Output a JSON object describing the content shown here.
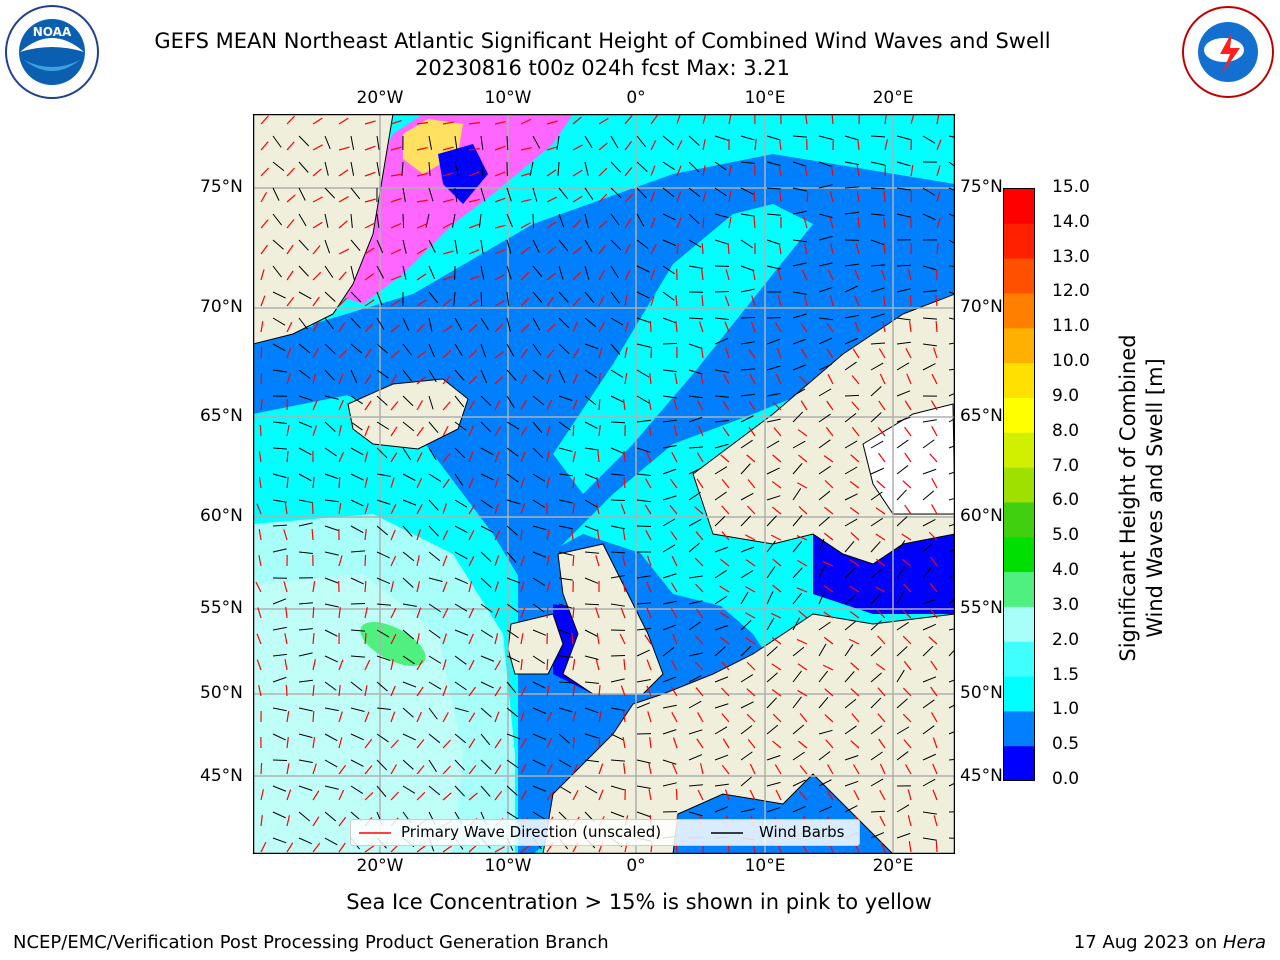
{
  "header": {
    "title_line1": "GEFS MEAN Northeast Atlantic Significant Height of Combined Wind Waves and Swell",
    "title_line2": "20230816 t00z 024h fcst   Max: 3.21"
  },
  "logos": {
    "noaa_text": "NOAA",
    "noaa_ring": "NATIONAL OCEANIC AND ATMOSPHERIC ADMINISTRATION · U.S. DEPARTMENT OF COMMERCE",
    "nws_ring": "NATIONAL WEATHER SERVICE"
  },
  "map": {
    "lon_labels": [
      "20°W",
      "10°W",
      "0°",
      "10°E",
      "20°E"
    ],
    "lat_labels": [
      "75°N",
      "70°N",
      "65°N",
      "60°N",
      "55°N",
      "50°N",
      "45°N"
    ],
    "colors": {
      "land": "#efefdc",
      "ocean_shallow": "#00ffff",
      "ocean_mid": "#0080ff",
      "ocean_low": "#0000ff",
      "ocean_high": "#a8fffa",
      "ice_pink": "#ff66ff",
      "wave_arrow": "#ff0000",
      "wind_barb": "#000000",
      "grid": "#b0b0b0"
    }
  },
  "legend": {
    "wave_label": "Primary Wave Direction (unscaled)",
    "barb_label": "Wind Barbs"
  },
  "colorbar": {
    "label_line1": "Significant Height of Combined",
    "label_line2": "Wind Waves and Swell [m]",
    "ticks": [
      "0.0",
      "0.5",
      "1.0",
      "1.5",
      "2.0",
      "3.0",
      "4.0",
      "5.0",
      "6.0",
      "7.0",
      "8.0",
      "9.0",
      "10.0",
      "11.0",
      "12.0",
      "13.0",
      "14.0",
      "15.0"
    ],
    "colors": [
      "#0000ff",
      "#0080ff",
      "#00ffff",
      "#40ffff",
      "#a8fffa",
      "#50f080",
      "#00e000",
      "#40d010",
      "#a0e000",
      "#d0f000",
      "#ffff00",
      "#ffe000",
      "#ffb000",
      "#ff8000",
      "#ff5000",
      "#ff2000",
      "#ff0000"
    ]
  },
  "caption": "Sea Ice Concentration > 15% is shown in pink to yellow",
  "footer": {
    "left": "NCEP/EMC/Verification Post Processing Product Generation Branch",
    "right_prefix": "17 Aug 2023 on ",
    "right_host": "Hera"
  }
}
